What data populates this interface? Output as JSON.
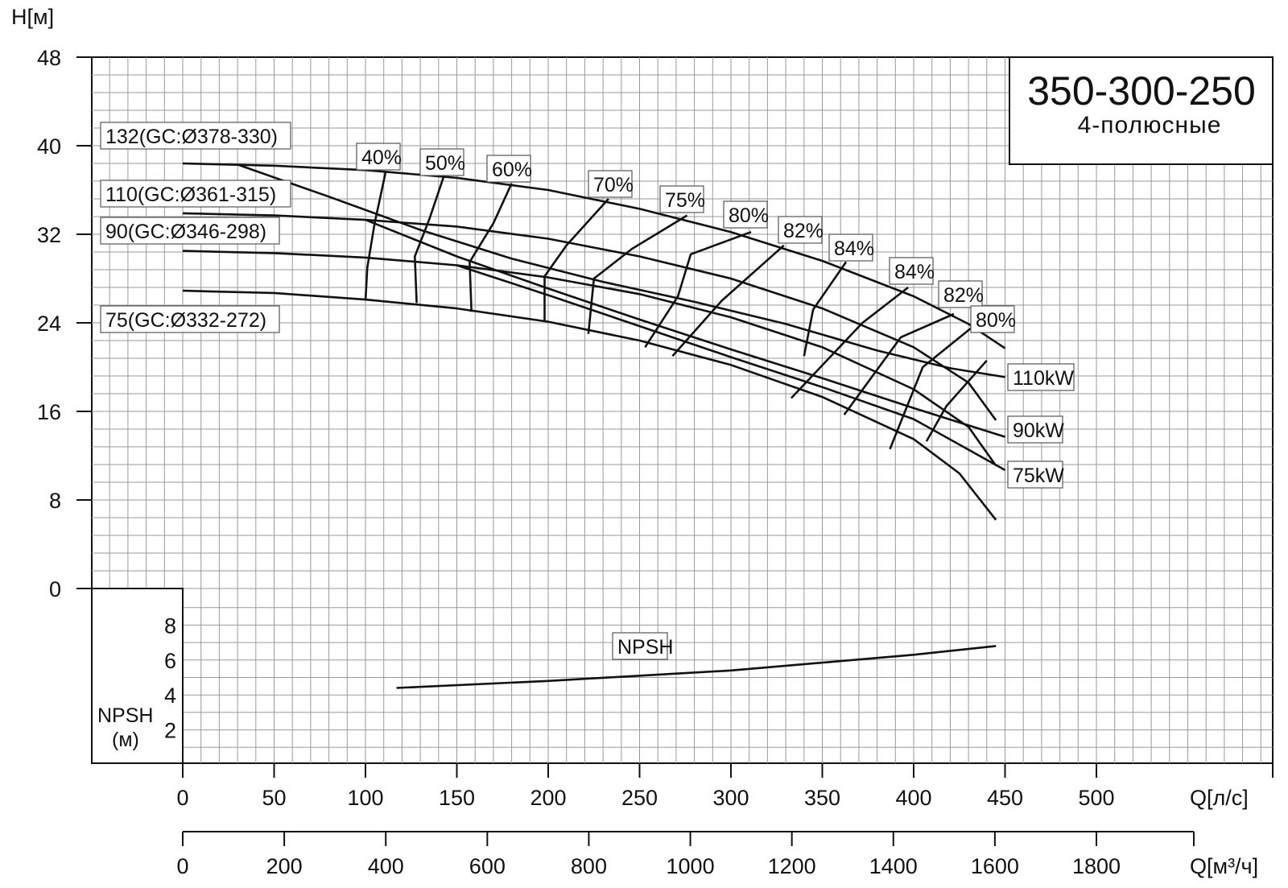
{
  "chart_data": {
    "type": "line",
    "title": "350-300-250",
    "subtitle": "4-полюсные",
    "ylabel": "H[м]",
    "xlabel": "Q[л/с]",
    "xlabel2": "Q[м³/ч]",
    "npsh_axis_label_1": "NPSH",
    "npsh_axis_label_2": "(м)",
    "xlim": [
      0,
      500
    ],
    "ylim": [
      0,
      48
    ],
    "x_ticks": [
      "0",
      "50",
      "100",
      "150",
      "200",
      "250",
      "300",
      "350",
      "400",
      "450",
      "500"
    ],
    "x2_ticks": [
      "0",
      "200",
      "400",
      "600",
      "800",
      "1000",
      "1200",
      "1400",
      "1600",
      "1800"
    ],
    "y_ticks": [
      "0",
      "8",
      "16",
      "24",
      "32",
      "40",
      "48"
    ],
    "npsh_ticks": [
      "2",
      "4",
      "6",
      "8"
    ],
    "grid": true,
    "impeller_curves": [
      {
        "name": "132(GC:Ø378-330)",
        "points": [
          [
            0,
            38.4
          ],
          [
            50,
            38.2
          ],
          [
            100,
            37.8
          ],
          [
            150,
            37.1
          ],
          [
            200,
            36.0
          ],
          [
            250,
            34.3
          ],
          [
            300,
            32.2
          ],
          [
            350,
            29.6
          ],
          [
            400,
            26.4
          ],
          [
            430,
            23.9
          ],
          [
            450,
            21.7
          ]
        ]
      },
      {
        "name": "110(GC:Ø361-315)",
        "points": [
          [
            0,
            33.9
          ],
          [
            50,
            33.7
          ],
          [
            100,
            33.3
          ],
          [
            150,
            32.7
          ],
          [
            200,
            31.6
          ],
          [
            250,
            30.0
          ],
          [
            300,
            28.0
          ],
          [
            350,
            25.3
          ],
          [
            400,
            21.8
          ],
          [
            430,
            18.6
          ],
          [
            445,
            15.2
          ]
        ]
      },
      {
        "name": "90(GC:Ø346-298)",
        "points": [
          [
            0,
            30.5
          ],
          [
            50,
            30.3
          ],
          [
            100,
            29.9
          ],
          [
            150,
            29.2
          ],
          [
            200,
            28.1
          ],
          [
            250,
            26.6
          ],
          [
            300,
            24.5
          ],
          [
            350,
            21.8
          ],
          [
            400,
            18.0
          ],
          [
            430,
            14.6
          ],
          [
            445,
            11.1
          ]
        ]
      },
      {
        "name": "75(GC:Ø332-272)",
        "points": [
          [
            0,
            26.9
          ],
          [
            50,
            26.7
          ],
          [
            100,
            26.1
          ],
          [
            150,
            25.3
          ],
          [
            200,
            24.1
          ],
          [
            250,
            22.4
          ],
          [
            300,
            20.2
          ],
          [
            350,
            17.3
          ],
          [
            400,
            13.5
          ],
          [
            425,
            10.4
          ],
          [
            445,
            6.2
          ]
        ]
      }
    ],
    "power_curves": [
      {
        "name": "110kW",
        "points": [
          [
            30,
            38.3
          ],
          [
            80,
            35.4
          ],
          [
            130,
            32.4
          ],
          [
            180,
            29.8
          ],
          [
            230,
            27.7
          ],
          [
            280,
            25.9
          ],
          [
            330,
            23.9
          ],
          [
            380,
            21.5
          ],
          [
            420,
            19.9
          ],
          [
            450,
            19.1
          ]
        ]
      },
      {
        "name": "90kW",
        "points": [
          [
            100,
            33.3
          ],
          [
            150,
            30.0
          ],
          [
            200,
            27.1
          ],
          [
            250,
            24.3
          ],
          [
            300,
            21.6
          ],
          [
            350,
            19.0
          ],
          [
            400,
            16.3
          ],
          [
            450,
            13.7
          ]
        ]
      },
      {
        "name": "75kW",
        "points": [
          [
            150,
            29.2
          ],
          [
            200,
            26.5
          ],
          [
            250,
            23.7
          ],
          [
            300,
            20.9
          ],
          [
            350,
            18.2
          ],
          [
            400,
            15.3
          ],
          [
            450,
            10.7
          ]
        ]
      }
    ],
    "efficiency_curves": [
      {
        "name": "40%",
        "points": [
          [
            111,
            37.6
          ],
          [
            105,
            33.0
          ],
          [
            101,
            29.0
          ],
          [
            100,
            26.0
          ]
        ]
      },
      {
        "name": "50%",
        "points": [
          [
            143,
            37.3
          ],
          [
            135,
            33.4
          ],
          [
            127,
            30.0
          ],
          [
            128,
            25.8
          ]
        ]
      },
      {
        "name": "60%",
        "points": [
          [
            180,
            36.6
          ],
          [
            170,
            33.0
          ],
          [
            157,
            29.5
          ],
          [
            158,
            25.0
          ]
        ]
      },
      {
        "name": "70%",
        "points": [
          [
            233,
            35.2
          ],
          [
            210,
            31.0
          ],
          [
            198,
            28.2
          ],
          [
            198,
            24.1
          ]
        ]
      },
      {
        "name": "75%",
        "points": [
          [
            276,
            33.7
          ],
          [
            246,
            30.7
          ],
          [
            225,
            28.0
          ],
          [
            222,
            23.0
          ]
        ]
      },
      {
        "name": "80%",
        "points": [
          [
            311,
            32.2
          ],
          [
            278,
            30.2
          ],
          [
            271,
            26.4
          ],
          [
            253,
            21.8
          ]
        ]
      },
      {
        "name": "82%",
        "points": [
          [
            329,
            31.0
          ],
          [
            295,
            26.0
          ],
          [
            268,
            21.0
          ]
        ]
      },
      {
        "name": "84%",
        "points": [
          [
            363,
            29.5
          ],
          [
            345,
            25.2
          ],
          [
            340,
            21.0
          ]
        ]
      },
      {
        "name": "84%",
        "points": [
          [
            397,
            27.2
          ],
          [
            372,
            24.0
          ],
          [
            333,
            17.2
          ]
        ]
      },
      {
        "name": "82%",
        "points": [
          [
            422,
            24.8
          ],
          [
            393,
            22.7
          ],
          [
            362,
            15.7
          ]
        ]
      },
      {
        "name": "80%",
        "points": [
          [
            432,
            23.6
          ],
          [
            405,
            20.0
          ],
          [
            387,
            12.6
          ]
        ]
      },
      {
        "name": "",
        "points": [
          [
            440,
            20.6
          ],
          [
            418,
            16.5
          ],
          [
            407,
            13.3
          ]
        ]
      }
    ],
    "npsh_curve": {
      "name": "NPSH",
      "points": [
        [
          117,
          4.4
        ],
        [
          200,
          4.8
        ],
        [
          300,
          5.4
        ],
        [
          400,
          6.3
        ],
        [
          445,
          6.8
        ]
      ]
    }
  }
}
